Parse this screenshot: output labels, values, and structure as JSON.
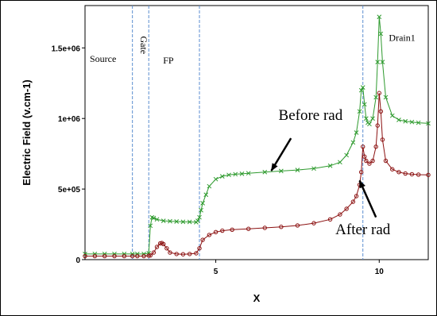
{
  "chart_data": {
    "type": "line",
    "title": "",
    "xlabel": "X",
    "ylabel": "Electric Field (v.cm-1)",
    "xlim": [
      1,
      11.5
    ],
    "ylim": [
      0,
      1800000
    ],
    "xticks": [
      {
        "value": 5,
        "label": "5"
      },
      {
        "value": 10,
        "label": "10"
      }
    ],
    "yticks": [
      {
        "value": 0,
        "label": "0"
      },
      {
        "value": 500000,
        "label": "5e+05"
      },
      {
        "value": 1000000,
        "label": "1e+06"
      },
      {
        "value": 1500000,
        "label": "1.5e+06"
      }
    ],
    "grid": false,
    "region_boundaries": [
      2.45,
      2.95,
      4.5,
      9.5
    ],
    "region_labels": [
      {
        "text": "Source",
        "x": 1.55,
        "y": 1400000
      },
      {
        "text": "Gate",
        "x": 2.7,
        "y": 1520000,
        "rotated": true
      },
      {
        "text": "FP",
        "x": 3.55,
        "y": 1390000
      },
      {
        "text": "Drain1",
        "x": 10.7,
        "y": 1550000
      }
    ],
    "annotations": [
      {
        "text": "Before rad",
        "label_x": 7.9,
        "label_y": 990000,
        "arrow_from_x": 7.3,
        "arrow_from_y": 860000,
        "arrow_to_x": 6.7,
        "arrow_to_y": 630000
      },
      {
        "text": "After rad",
        "label_x": 9.5,
        "label_y": 180000,
        "arrow_from_x": 9.9,
        "arrow_from_y": 300000,
        "arrow_to_x": 9.4,
        "arrow_to_y": 560000
      }
    ],
    "series": [
      {
        "color": "#2e9a2e",
        "marker": "x",
        "x": [
          1.0,
          1.3,
          1.6,
          1.9,
          2.2,
          2.45,
          2.6,
          2.8,
          2.95,
          3.0,
          3.05,
          3.1,
          3.2,
          3.4,
          3.6,
          3.8,
          4.0,
          4.2,
          4.4,
          4.45,
          4.5,
          4.55,
          4.6,
          4.7,
          4.8,
          5.0,
          5.2,
          5.4,
          5.6,
          5.8,
          6.0,
          6.5,
          7.0,
          7.5,
          8.0,
          8.5,
          8.8,
          9.0,
          9.2,
          9.3,
          9.4,
          9.45,
          9.5,
          9.55,
          9.6,
          9.65,
          9.7,
          9.8,
          9.9,
          9.95,
          10.0,
          10.05,
          10.1,
          10.2,
          10.4,
          10.6,
          10.8,
          11.0,
          11.2,
          11.5
        ],
        "y": [
          40000,
          40000,
          40000,
          40000,
          40000,
          40000,
          40000,
          40000,
          45000,
          240000,
          300000,
          295000,
          285000,
          275000,
          272000,
          270000,
          268000,
          267000,
          265000,
          275000,
          300000,
          350000,
          400000,
          460000,
          520000,
          570000,
          590000,
          600000,
          605000,
          608000,
          612000,
          620000,
          628000,
          635000,
          645000,
          665000,
          690000,
          740000,
          830000,
          900000,
          1050000,
          1200000,
          1220000,
          1100000,
          1000000,
          970000,
          960000,
          1000000,
          1150000,
          1400000,
          1720000,
          1600000,
          1400000,
          1150000,
          1020000,
          990000,
          980000,
          975000,
          970000,
          965000
        ]
      },
      {
        "color": "#8b1010",
        "marker": "o",
        "x": [
          1.0,
          1.3,
          1.6,
          1.9,
          2.2,
          2.45,
          2.6,
          2.8,
          2.95,
          3.0,
          3.1,
          3.2,
          3.3,
          3.35,
          3.4,
          3.5,
          3.6,
          3.8,
          4.0,
          4.2,
          4.4,
          4.5,
          4.6,
          4.8,
          5.0,
          5.2,
          5.5,
          6.0,
          6.5,
          7.0,
          7.5,
          8.0,
          8.5,
          8.8,
          9.0,
          9.2,
          9.3,
          9.4,
          9.45,
          9.5,
          9.55,
          9.6,
          9.7,
          9.8,
          9.9,
          9.95,
          10.0,
          10.05,
          10.1,
          10.2,
          10.4,
          10.6,
          10.8,
          11.0,
          11.2,
          11.5
        ],
        "y": [
          25000,
          25000,
          25000,
          25000,
          25000,
          25000,
          25000,
          25000,
          28000,
          30000,
          50000,
          90000,
          115000,
          118000,
          110000,
          80000,
          50000,
          40000,
          38000,
          40000,
          45000,
          80000,
          140000,
          175000,
          195000,
          205000,
          212000,
          218000,
          225000,
          232000,
          242000,
          258000,
          285000,
          320000,
          360000,
          410000,
          450000,
          530000,
          620000,
          800000,
          730000,
          700000,
          680000,
          700000,
          800000,
          950000,
          1180000,
          1050000,
          850000,
          700000,
          640000,
          620000,
          610000,
          605000,
          602000,
          600000
        ]
      }
    ]
  }
}
